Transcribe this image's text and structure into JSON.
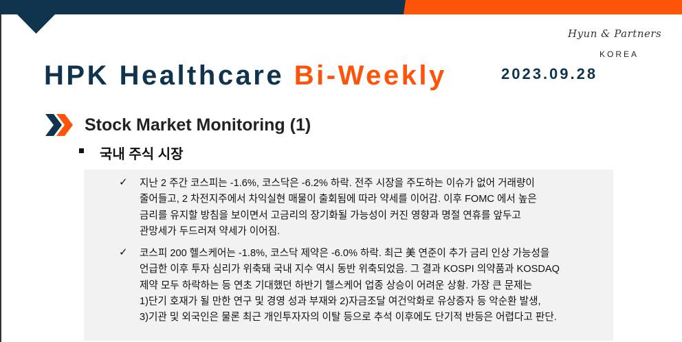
{
  "header": {
    "brand_line1": "Hyun & Partners",
    "brand_line2": "KOREA",
    "title_main": "HPK Healthcare",
    "title_accent": "Bi-Weekly",
    "date": "2023.09.28",
    "colors": {
      "navy": "#10344d",
      "orange": "#fe5409"
    }
  },
  "section": {
    "icon": "double-chevron-right-icon",
    "title": "Stock Market Monitoring (1)",
    "subtitle": "국내 주식 시장"
  },
  "items": [
    {
      "icon": "checkmark-icon",
      "lines": [
        "지난 2 주간 코스피는 -1.6%, 코스닥은 -6.2% 하락. 전주 시장을 주도하는 이슈가 없어 거래량이",
        "줄어들고, 2 차전지주에서 차익실현 매물이 출회됨에 따라 약세를 이어감. 이후 FOMC 에서 높은",
        "금리를 유지할 방침을 보이면서 고금리의 장기화될 가능성이 커진 영향과 명절 연휴를 앞두고",
        "관망세가 두드러져 약세가 이어짐."
      ]
    },
    {
      "icon": "checkmark-icon",
      "lines": [
        "코스피 200 헬스케어는 -1.8%, 코스닥 제약은 -6.0% 하락. 최근 美 연준이 추가 금리 인상 가능성을",
        "언급한 이후 투자 심리가 위축돼 국내 지수 역시 동반 위축되었음. 그 결과 KOSPI 의약품과 KOSDAQ",
        "제약 모두 하락하는 등 연초 기대했던 하반기 헬스케어 업종 상승이 어려운 상황. 가장 큰 문제는",
        "1)단기 호재가 될 만한 연구 및 경영 성과 부재와 2)자금조달 여건악화로 유상증자 등 악순환 발생,",
        "3)기관 및 외국인은 물론 최근 개인투자자의 이탈 등으로 추석 이후에도 단기적 반등은 어렵다고 판단."
      ]
    }
  ]
}
